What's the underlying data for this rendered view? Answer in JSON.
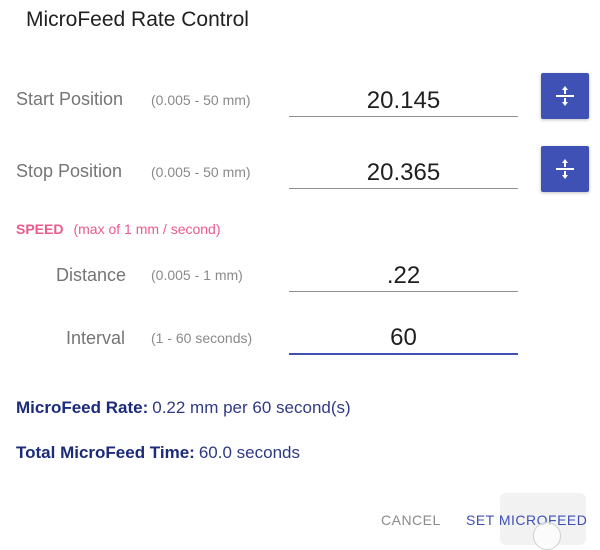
{
  "dialog": {
    "title": "MicroFeed Rate Control"
  },
  "start": {
    "label": "Start Position",
    "range": "(0.005 - 50 mm)",
    "value": "20.145",
    "button_icon": "divide-icon"
  },
  "stop": {
    "label": "Stop Position",
    "range": "(0.005 - 50 mm)",
    "value": "20.365",
    "button_icon": "divide-icon"
  },
  "speed": {
    "heading": "SPEED",
    "note": "(max of 1 mm / second)"
  },
  "distance": {
    "label": "Distance",
    "range": "(0.005 - 1 mm)",
    "value": ".22"
  },
  "interval": {
    "label": "Interval",
    "range": "(1 - 60 seconds)",
    "value": "60"
  },
  "summary": {
    "rate_label": "MicroFeed Rate:",
    "rate_value": "0.22 mm per 60 second(s)",
    "time_label": "Total MicroFeed Time:",
    "time_value": "60.0 seconds"
  },
  "actions": {
    "cancel": "CANCEL",
    "confirm": "SET MICROFEED"
  },
  "colors": {
    "accent": "#3f51b5",
    "speed_text": "#ec5a8a",
    "summary_text": "#1c2a7a"
  }
}
